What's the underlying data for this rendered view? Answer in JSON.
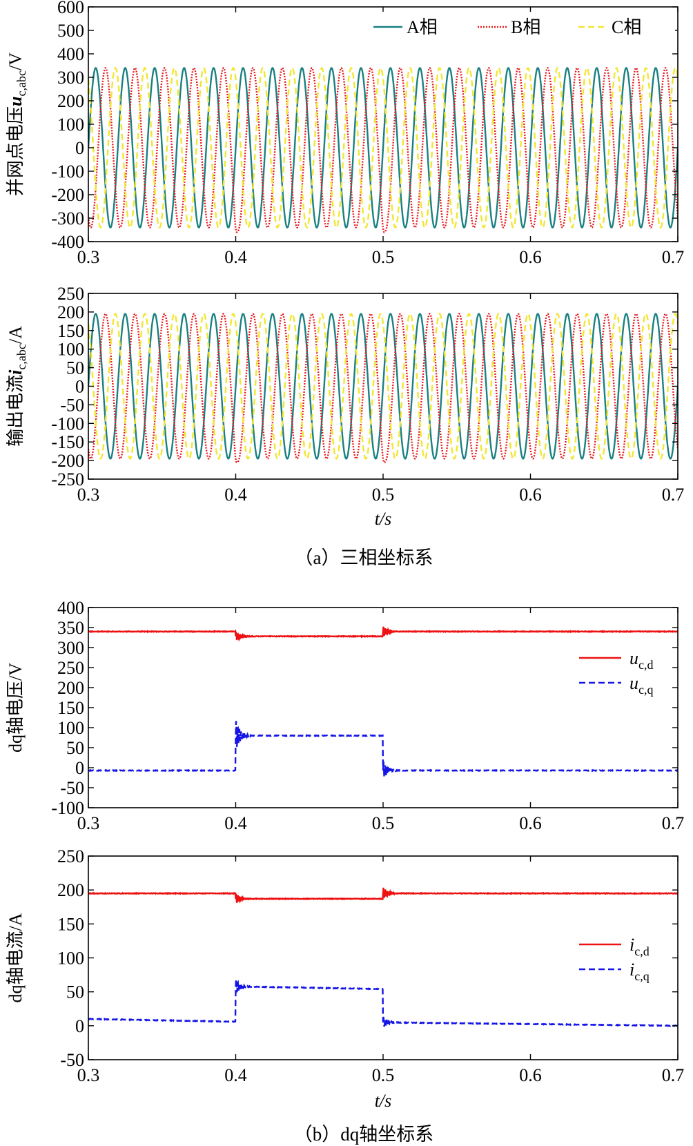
{
  "colors": {
    "phase_a": "#1a8080",
    "phase_b": "#e6191e",
    "phase_c": "#f2e633",
    "d_axis": "#ee1111",
    "q_axis": "#1515e6"
  },
  "captions": {
    "a": "（a）三相坐标系",
    "b": "（b）dq轴坐标系"
  },
  "chart_data": [
    {
      "type": "line",
      "ylabel_text": "并网点电压",
      "ylabel_sym": "u",
      "ylabel_sub": "c,abc",
      "ylabel_unit": "/V",
      "xlabel": "",
      "xlim": [
        0.3,
        0.7
      ],
      "ylim": [
        -400,
        600
      ],
      "xticks": [
        "0.3",
        "0.4",
        "0.5",
        "0.6",
        "0.7"
      ],
      "yticks": [
        "600",
        "500",
        "400",
        "300",
        "200",
        "100",
        "0",
        "-100",
        "-200",
        "-300",
        "-400"
      ],
      "legend_position": "top-right",
      "signal": {
        "kind": "three-phase",
        "amplitude": 340,
        "frequency_hz": 50,
        "dip_at": [
          0.4,
          0.5
        ],
        "dip_peak": -360
      },
      "series": [
        {
          "name": "A相",
          "phase_deg": 0,
          "color_key": "phase_a",
          "style": "solid"
        },
        {
          "name": "B相",
          "phase_deg": -120,
          "color_key": "phase_b",
          "style": "dotted"
        },
        {
          "name": "C相",
          "phase_deg": 120,
          "color_key": "phase_c",
          "style": "dashed"
        }
      ]
    },
    {
      "type": "line",
      "ylabel_text": "输出电流",
      "ylabel_sym": "i",
      "ylabel_sub": "c,abc",
      "ylabel_unit": "/A",
      "xlabel": "t/s",
      "xlim": [
        0.3,
        0.7
      ],
      "ylim": [
        -250,
        250
      ],
      "xticks": [
        "0.3",
        "0.4",
        "0.5",
        "0.6",
        "0.7"
      ],
      "yticks": [
        "250",
        "200",
        "150",
        "100",
        "50",
        "0",
        "-50",
        "-100",
        "-150",
        "-200",
        "-250"
      ],
      "signal": {
        "kind": "three-phase",
        "amplitude": 195,
        "frequency_hz": 50,
        "dip_at": [
          0.4,
          0.5
        ],
        "dip_peak": -205
      },
      "series": [
        {
          "name": "A相",
          "phase_deg": 0,
          "color_key": "phase_a",
          "style": "solid"
        },
        {
          "name": "B相",
          "phase_deg": -120,
          "color_key": "phase_b",
          "style": "dotted"
        },
        {
          "name": "C相",
          "phase_deg": 120,
          "color_key": "phase_c",
          "style": "dashed"
        }
      ]
    },
    {
      "type": "line",
      "ylabel_text": "dq轴电压/V",
      "xlabel": "",
      "xlim": [
        0.3,
        0.7
      ],
      "ylim": [
        -100,
        400
      ],
      "xticks": [
        "0.3",
        "0.4",
        "0.5",
        "0.6",
        "0.7"
      ],
      "yticks": [
        "400",
        "350",
        "300",
        "250",
        "200",
        "150",
        "100",
        "50",
        "0",
        "-50",
        "-100"
      ],
      "legend_position": "right",
      "series": [
        {
          "name": "u",
          "sub": "c,d",
          "color_key": "d_axis",
          "style": "solid",
          "segments": [
            [
              0.3,
              0.4,
              340
            ],
            [
              0.4,
              0.5,
              328
            ],
            [
              0.5,
              0.7,
              340
            ]
          ],
          "transients": [
            {
              "t": 0.4,
              "amp": 12
            },
            {
              "t": 0.5,
              "amp": 14
            }
          ]
        },
        {
          "name": "u",
          "sub": "c,q",
          "color_key": "q_axis",
          "style": "dashed",
          "segments": [
            [
              0.3,
              0.4,
              -7
            ],
            [
              0.4,
              0.5,
              80
            ],
            [
              0.5,
              0.7,
              -7
            ]
          ],
          "transients": [
            {
              "t": 0.4,
              "amp": 40
            },
            {
              "t": 0.5,
              "amp": 25
            }
          ]
        }
      ]
    },
    {
      "type": "line",
      "ylabel_text": "dq轴电流/A",
      "xlabel": "t/s",
      "xlim": [
        0.3,
        0.7
      ],
      "ylim": [
        -50,
        250
      ],
      "xticks": [
        "0.3",
        "0.4",
        "0.5",
        "0.6",
        "0.7"
      ],
      "yticks": [
        "250",
        "200",
        "150",
        "100",
        "50",
        "0",
        "-50"
      ],
      "legend_position": "right",
      "series": [
        {
          "name": "i",
          "sub": "c,d",
          "color_key": "d_axis",
          "style": "solid",
          "segments": [
            [
              0.3,
              0.4,
              195
            ],
            [
              0.4,
              0.5,
              187
            ],
            [
              0.5,
              0.7,
              195
            ]
          ],
          "transients": [
            {
              "t": 0.4,
              "amp": 8
            },
            {
              "t": 0.5,
              "amp": 9
            }
          ]
        },
        {
          "name": "i",
          "sub": "c,q",
          "color_key": "q_axis",
          "style": "dashed",
          "segments": [
            [
              0.3,
              0.4,
              10,
              6
            ],
            [
              0.4,
              0.5,
              58,
              54
            ],
            [
              0.5,
              0.7,
              5,
              0
            ]
          ],
          "transients": [
            {
              "t": 0.4,
              "amp": 12
            },
            {
              "t": 0.5,
              "amp": 9
            }
          ]
        }
      ]
    }
  ]
}
